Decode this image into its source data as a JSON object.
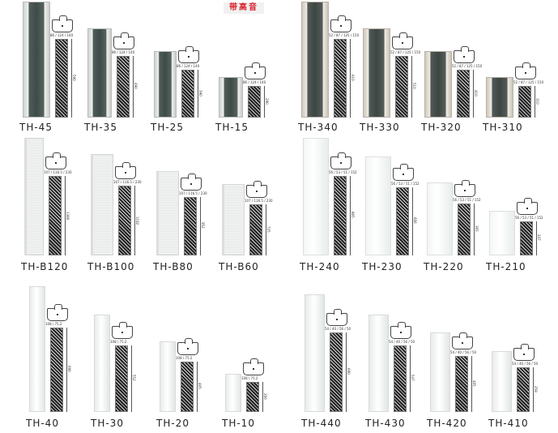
{
  "badge": "带高音",
  "colors": {
    "badge_text": "#d9232d",
    "grille_dark": "#3f4b48"
  },
  "groups": [
    {
      "style": "metal",
      "section_dims": [
        "86",
        "124",
        "140"
      ],
      "products": [
        {
          "model": "TH-45",
          "height": "590"
        },
        {
          "model": "TH-35",
          "height": "490"
        },
        {
          "model": "TH-25",
          "height": "390"
        },
        {
          "model": "TH-15",
          "height": "290"
        }
      ]
    },
    {
      "style": "beige",
      "section_dims": [
        "52",
        "87",
        "125",
        "150"
      ],
      "products": [
        {
          "model": "TH-340",
          "height": "610"
        },
        {
          "model": "TH-330",
          "height": "510"
        },
        {
          "model": "TH-320",
          "height": "410"
        },
        {
          "model": "TH-310",
          "height": "310"
        }
      ]
    },
    {
      "style": "perf",
      "section_dims": [
        "107",
        "116.5",
        "230"
      ],
      "products": [
        {
          "model": "TH-B120",
          "height": "1380"
        },
        {
          "model": "TH-B100",
          "height": "1182"
        },
        {
          "model": "TH-B80",
          "height": "952"
        },
        {
          "model": "TH-B60",
          "height": "725"
        }
      ]
    },
    {
      "style": "white",
      "section_dims": [
        "56",
        "53",
        "51",
        "152"
      ],
      "products": [
        {
          "model": "TH-240",
          "height": "805"
        },
        {
          "model": "TH-230",
          "height": "606"
        },
        {
          "model": "TH-220",
          "height": "365"
        },
        {
          "model": "TH-210",
          "height": "247"
        }
      ]
    },
    {
      "style": "slim",
      "section_dims": [
        "108",
        "75.2"
      ],
      "products": [
        {
          "model": "TH-40",
          "height": "690"
        },
        {
          "model": "TH-30",
          "height": "552"
        },
        {
          "model": "TH-20",
          "height": "405"
        },
        {
          "model": "TH-10",
          "height": "260"
        }
      ]
    },
    {
      "style": "slim",
      "section_dims": [
        "54",
        "40",
        "56",
        "50"
      ],
      "products": [
        {
          "model": "TH-440",
          "height": "690"
        },
        {
          "model": "TH-430",
          "height": "547"
        },
        {
          "model": "TH-420",
          "height": "405"
        },
        {
          "model": "TH-410",
          "height": "259"
        }
      ]
    }
  ]
}
